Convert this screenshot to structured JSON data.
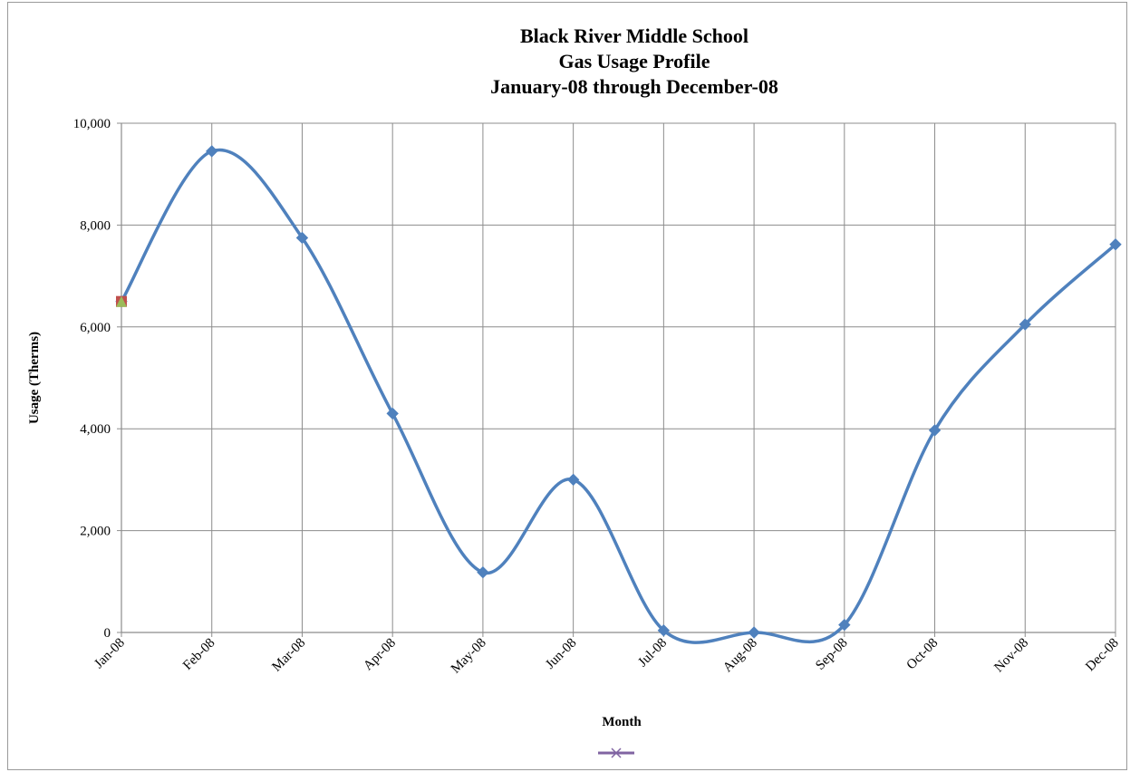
{
  "chart_data": {
    "type": "line",
    "title": [
      "Black River Middle School",
      "Gas Usage Profile",
      "January-08 through December-08"
    ],
    "xlabel": "Month",
    "ylabel": "Usage  (Therms)",
    "categories": [
      "Jan-08",
      "Feb-08",
      "Mar-08",
      "Apr-08",
      "May-08",
      "Jun-08",
      "Jul-08",
      "Aug-08",
      "Sep-08",
      "Oct-08",
      "Nov-08",
      "Dec-08"
    ],
    "ylim": [
      0,
      10000
    ],
    "yticks": [
      0,
      2000,
      4000,
      6000,
      8000,
      10000
    ],
    "ytick_labels": [
      "0",
      "2,000",
      "4,000",
      "6,000",
      "8,000",
      "10,000"
    ],
    "grid": true,
    "smooth": true,
    "series": [
      {
        "color": "#4f81bd",
        "marker": "diamond",
        "values": [
          6500,
          9450,
          7750,
          4300,
          1180,
          3000,
          40,
          0,
          150,
          3970,
          6050,
          7620
        ]
      }
    ],
    "extra_markers": [
      {
        "category": "Jan-08",
        "value": 6500,
        "shape": "square",
        "color": "#c0504d"
      },
      {
        "category": "Jan-08",
        "value": 6500,
        "shape": "triangle",
        "color": "#9bbb59"
      }
    ],
    "legend": {
      "position": "bottom",
      "color": "#8064a2",
      "marker": "x"
    }
  }
}
